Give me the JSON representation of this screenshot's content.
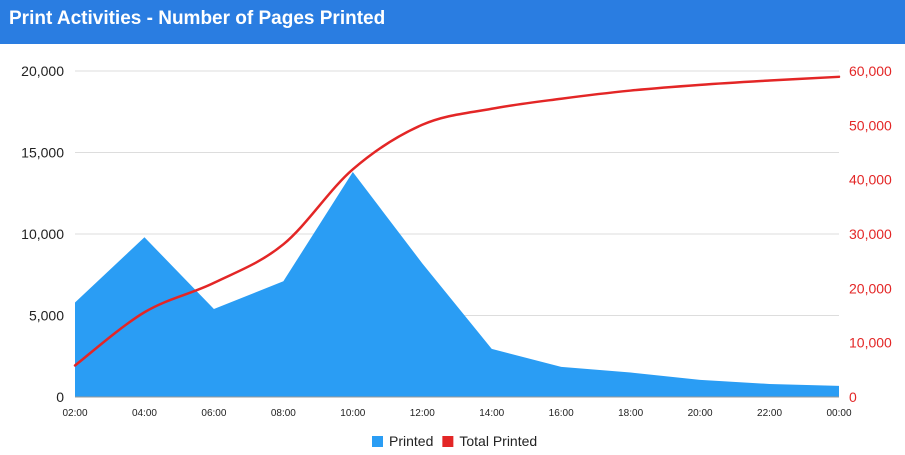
{
  "header": {
    "title": "Print Activities - Number of Pages Printed"
  },
  "colors": {
    "header_bg": "#2a7de1",
    "printed": "#2a9df4",
    "total": "#e32626",
    "grid": "#dddddd"
  },
  "chart_data": {
    "type": "area",
    "title": "Print Activities - Number of Pages Printed",
    "categories": [
      "02:00",
      "04:00",
      "06:00",
      "08:00",
      "10:00",
      "12:00",
      "14:00",
      "16:00",
      "18:00",
      "20:00",
      "22:00",
      "00:00"
    ],
    "series": [
      {
        "name": "Printed",
        "type": "area",
        "axis": "left",
        "values": [
          5800,
          9800,
          5400,
          7100,
          13800,
          8200,
          2950,
          1850,
          1500,
          1050,
          800,
          680
        ]
      },
      {
        "name": "Total Printed",
        "type": "line",
        "axis": "right",
        "values": [
          5800,
          15600,
          21000,
          28100,
          41900,
          50100,
          53050,
          54900,
          56400,
          57450,
          58250,
          58930
        ]
      }
    ],
    "y_left": {
      "min": 0,
      "max": 20000,
      "ticks": [
        0,
        5000,
        10000,
        15000,
        20000
      ],
      "tick_labels": [
        "0",
        "5,000",
        "10,000",
        "15,000",
        "20,000"
      ]
    },
    "y_right": {
      "min": 0,
      "max": 60000,
      "ticks": [
        0,
        10000,
        20000,
        30000,
        40000,
        50000,
        60000
      ],
      "tick_labels": [
        "0",
        "10,000",
        "20,000",
        "30,000",
        "40,000",
        "50,000",
        "60,000"
      ]
    },
    "grid": true,
    "legend": {
      "position": "bottom",
      "entries": [
        "Printed",
        "Total Printed"
      ]
    }
  }
}
